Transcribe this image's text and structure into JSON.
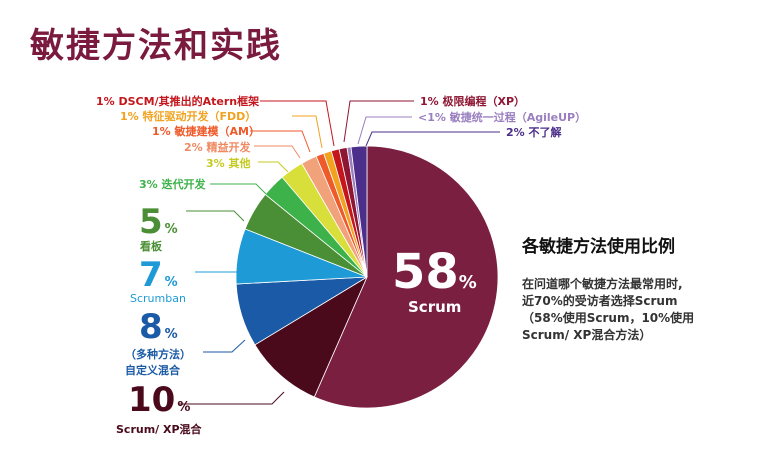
{
  "title": "敏捷方法和实践",
  "side_text": {
    "heading": "各敏捷方法使用比例",
    "lines": [
      "在问道哪个敏捷方法最常用时,",
      "近70%的受访者选择Scrum",
      "（58%使用Scrum，10%使用",
      "Scrum/ XP混合方法）"
    ]
  },
  "chart_data": {
    "type": "pie",
    "title": "",
    "slices": [
      {
        "label": "Scrum",
        "value": 58,
        "color": "#7b1f41"
      },
      {
        "label": "Scrum/ XP混合",
        "value": 10,
        "color": "#4a0a1c"
      },
      {
        "label": "（多种方法）自定义混合",
        "value": 8,
        "color": "#1a5aa6"
      },
      {
        "label": "Scrumban",
        "value": 7,
        "color": "#1e9bd7"
      },
      {
        "label": "看板",
        "value": 5,
        "color": "#4a8f35"
      },
      {
        "label": "迭代开发",
        "value": 3,
        "color": "#3db24a"
      },
      {
        "label": "其他",
        "value": 3,
        "color": "#d9df3a"
      },
      {
        "label": "精益开发",
        "value": 2,
        "color": "#f2a27a"
      },
      {
        "label": "敏捷建模（AM）",
        "value": 1,
        "color": "#ee5a2a"
      },
      {
        "label": "特征驱动开发（FDD）",
        "value": 1,
        "color": "#f1a21f"
      },
      {
        "label": "DSCM/其推出的Atern框架",
        "value": 1,
        "color": "#c4161c"
      },
      {
        "label": "极限编程（XP）",
        "value": 1,
        "color": "#8e1633"
      },
      {
        "label": "敏捷统一过程（AgileUP）",
        "value": 0.5,
        "color": "#9a7fc0"
      },
      {
        "label": "不了解",
        "value": 2,
        "color": "#4b2f8a"
      }
    ],
    "labels": {
      "scrum": {
        "num": "58",
        "pct": "%",
        "name": "Scrum"
      },
      "xpmix": {
        "num": "10",
        "pct": "%",
        "name": "Scrum/ XP混合"
      },
      "custom": {
        "num": "8",
        "pct": "%",
        "name1": "（多种方法）",
        "name2": "自定义混合"
      },
      "scrumban": {
        "num": "7",
        "pct": "%",
        "name": "Scrumban"
      },
      "kanban": {
        "num": "5",
        "pct": "%",
        "name": "看板"
      },
      "iter": "3% 迭代开发",
      "other": "3% 其他",
      "lean": "2% 精益开发",
      "am": "1% 敏捷建模（AM）",
      "fdd": "1% 特征驱动开发（FDD）",
      "dscm": "1% DSCM/其推出的Atern框架",
      "xp": "1% 极限编程（XP）",
      "agileup": "<1% 敏捷统一过程（AgileUP）",
      "unknown": "2% 不了解"
    }
  }
}
